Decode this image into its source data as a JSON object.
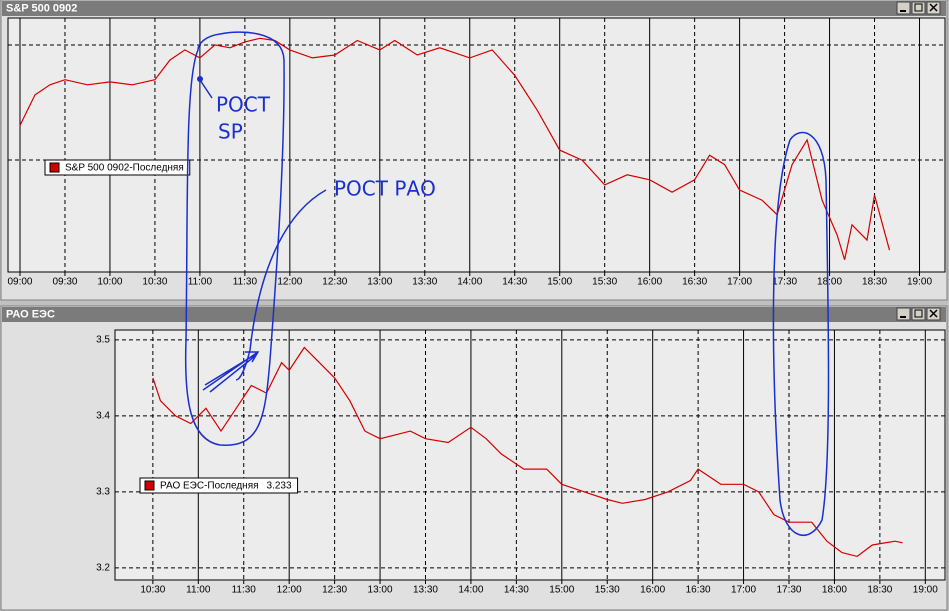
{
  "chart_data": [
    {
      "type": "line",
      "title": "S&P 500 0902",
      "x": [
        "09:00",
        "09:10",
        "09:20",
        "09:30",
        "09:45",
        "10:00",
        "10:15",
        "10:30",
        "10:40",
        "10:50",
        "11:00",
        "11:10",
        "11:20",
        "11:30",
        "11:40",
        "11:50",
        "12:00",
        "12:15",
        "12:30",
        "12:45",
        "13:00",
        "13:10",
        "13:25",
        "13:40",
        "14:00",
        "14:15",
        "14:30",
        "14:45",
        "15:00",
        "15:15",
        "15:30",
        "15:45",
        "16:00",
        "16:15",
        "16:30",
        "16:40",
        "16:50",
        "17:00",
        "17:15",
        "17:25",
        "17:35",
        "17:45",
        "17:55",
        "18:05",
        "18:10",
        "18:15",
        "18:25",
        "18:30",
        "18:40"
      ],
      "series": [
        {
          "name": "S&P 500 0902-Последняя",
          "color": "#d40000",
          "values": [
            900.2,
            904.4,
            905.8,
            906.5,
            905.8,
            906.2,
            905.8,
            906.5,
            909.2,
            910.6,
            909.5,
            911.3,
            910.9,
            911.7,
            912.2,
            911.9,
            910.6,
            909.5,
            909.9,
            911.9,
            910.6,
            911.9,
            909.9,
            910.9,
            909.5,
            910.6,
            907.1,
            902.3,
            896.8,
            895.4,
            892.0,
            893.4,
            892.7,
            891.0,
            892.7,
            896.1,
            894.8,
            891.3,
            889.9,
            887.9,
            894.8,
            898.2,
            889.9,
            885.1,
            881.7,
            886.5,
            884.4,
            890.6,
            883.0
          ]
        }
      ],
      "xlim": [
        "08:52",
        "19:17"
      ],
      "xticks": [
        "09:00",
        "09:30",
        "10:00",
        "10:30",
        "11:00",
        "11:30",
        "12:00",
        "12:30",
        "13:00",
        "13:30",
        "14:00",
        "14:30",
        "15:00",
        "15:30",
        "16:00",
        "16:30",
        "17:00",
        "17:30",
        "18:00",
        "18:30",
        "19:00"
      ],
      "ylim": [
        880,
        915
      ],
      "annotations": [
        "РОСТ",
        "SP",
        "РОСТ РАО"
      ]
    },
    {
      "type": "line",
      "title": "РАО ЕЭС",
      "x": [
        "10:30",
        "10:35",
        "10:45",
        "10:55",
        "11:05",
        "11:15",
        "11:25",
        "11:35",
        "11:45",
        "11:55",
        "12:00",
        "12:10",
        "12:20",
        "12:30",
        "12:40",
        "12:50",
        "13:00",
        "13:10",
        "13:20",
        "13:30",
        "13:45",
        "14:00",
        "14:10",
        "14:20",
        "14:35",
        "14:50",
        "15:00",
        "15:15",
        "15:30",
        "15:40",
        "15:55",
        "16:10",
        "16:25",
        "16:30",
        "16:45",
        "17:00",
        "17:10",
        "17:20",
        "17:30",
        "17:45",
        "17:55",
        "18:05",
        "18:15",
        "18:25",
        "18:40",
        "18:45"
      ],
      "series": [
        {
          "name": "РАО ЕЭС-Последняя",
          "color": "#d40000",
          "values": [
            3.45,
            3.42,
            3.4,
            3.39,
            3.41,
            3.38,
            3.41,
            3.44,
            3.43,
            3.47,
            3.46,
            3.49,
            3.47,
            3.45,
            3.42,
            3.38,
            3.37,
            3.375,
            3.38,
            3.37,
            3.365,
            3.385,
            3.37,
            3.35,
            3.33,
            3.33,
            3.31,
            3.3,
            3.29,
            3.285,
            3.29,
            3.3,
            3.315,
            3.33,
            3.31,
            3.31,
            3.3,
            3.27,
            3.26,
            3.26,
            3.235,
            3.22,
            3.215,
            3.23,
            3.235,
            3.233
          ]
        }
      ],
      "legend_value": 3.233,
      "xlim": [
        "10:05",
        "19:13"
      ],
      "xticks": [
        "10:30",
        "11:00",
        "11:30",
        "12:00",
        "12:30",
        "13:00",
        "13:30",
        "14:00",
        "14:30",
        "15:00",
        "15:30",
        "16:00",
        "16:30",
        "17:00",
        "17:30",
        "18:00",
        "18:30",
        "19:00"
      ],
      "ylim": [
        3.184,
        3.513
      ],
      "yticks": [
        3.2,
        3.3,
        3.4,
        3.5
      ]
    }
  ]
}
